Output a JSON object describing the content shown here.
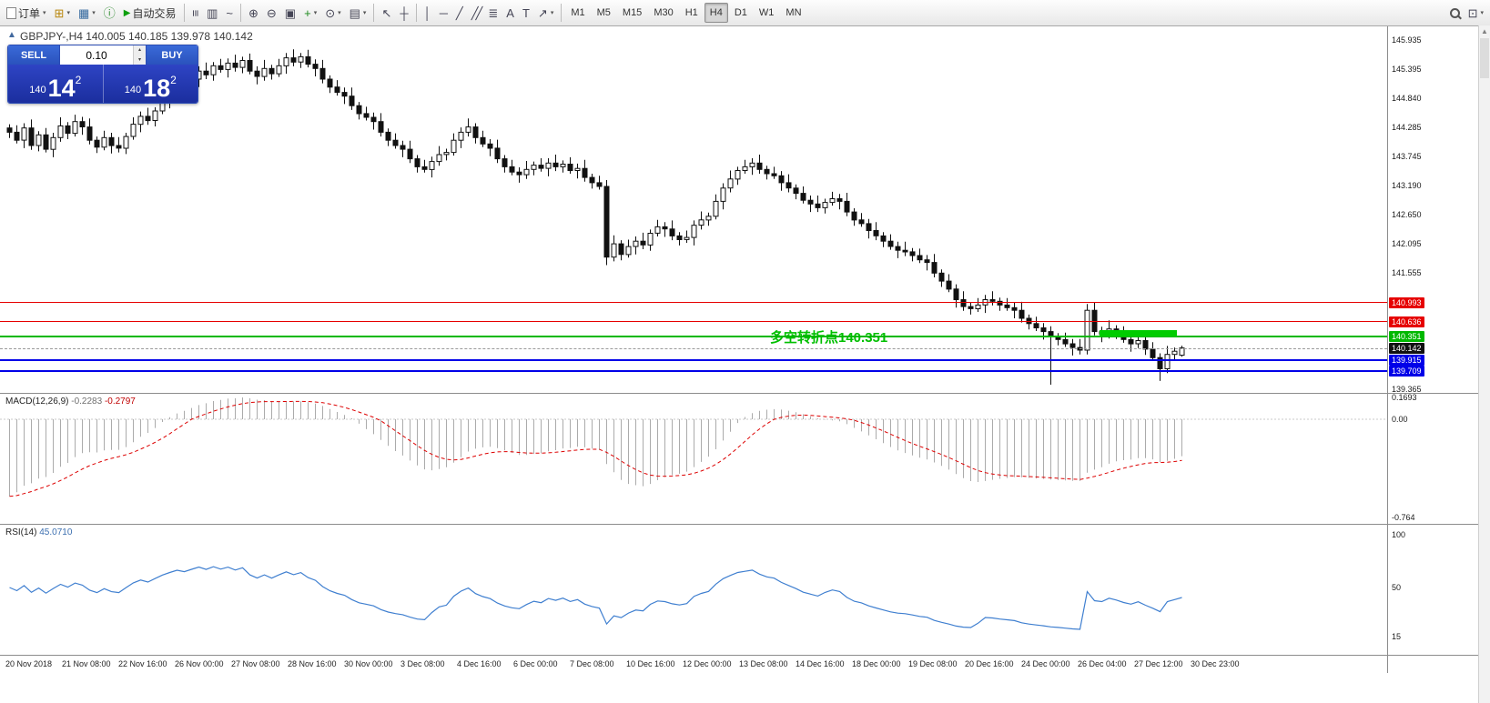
{
  "toolbar": {
    "items": [
      {
        "t": "btn",
        "name": "new-order-button",
        "label": "订单",
        "icon": "doc",
        "caret": true
      },
      {
        "t": "icon",
        "name": "new-chart-icon",
        "g": "⊞",
        "c": "#b8860b",
        "caret": true
      },
      {
        "t": "icon",
        "name": "profiles-icon",
        "g": "▦",
        "c": "#33689e",
        "caret": true
      },
      {
        "t": "icon",
        "name": "data-window-icon",
        "g": "ⓘ",
        "c": "#2e8b2e"
      },
      {
        "t": "btn",
        "name": "autotrading-button",
        "label": "自动交易",
        "icon": "play"
      },
      {
        "t": "sep"
      },
      {
        "t": "icon",
        "name": "bar-chart-icon",
        "g": "≡",
        "rot": true
      },
      {
        "t": "icon",
        "name": "candlestick-chart-icon",
        "g": "▥"
      },
      {
        "t": "icon",
        "name": "line-chart-icon",
        "g": "~"
      },
      {
        "t": "sep"
      },
      {
        "t": "icon",
        "name": "zoom-in-icon",
        "g": "⊕"
      },
      {
        "t": "icon",
        "name": "zoom-out-icon",
        "g": "⊖"
      },
      {
        "t": "icon",
        "name": "tile-windows-icon",
        "g": "▣"
      },
      {
        "t": "icon",
        "name": "indicators-icon",
        "g": "+",
        "c": "#1e8a1e",
        "caret": true
      },
      {
        "t": "icon",
        "name": "periods-icon",
        "g": "⊙",
        "caret": true
      },
      {
        "t": "icon",
        "name": "templates-icon",
        "g": "▤",
        "caret": true
      },
      {
        "t": "sep"
      },
      {
        "t": "icon",
        "name": "cursor-icon",
        "g": "↖"
      },
      {
        "t": "icon",
        "name": "crosshair-icon",
        "g": "┼"
      },
      {
        "t": "sep"
      },
      {
        "t": "icon",
        "name": "vertical-line-icon",
        "g": "│"
      },
      {
        "t": "icon",
        "name": "horizontal-line-icon",
        "g": "─"
      },
      {
        "t": "icon",
        "name": "trendline-icon",
        "g": "╱"
      },
      {
        "t": "icon",
        "name": "equidistant-channel-icon",
        "g": "╱╱"
      },
      {
        "t": "icon",
        "name": "fibonacci-icon",
        "g": "≣"
      },
      {
        "t": "icon",
        "name": "text-icon",
        "g": "A"
      },
      {
        "t": "icon",
        "name": "text-label-icon",
        "g": "T"
      },
      {
        "t": "icon",
        "name": "arrows-icon",
        "g": "↗",
        "caret": true
      },
      {
        "t": "sep"
      },
      {
        "t": "timeframes"
      },
      {
        "t": "spacer"
      },
      {
        "t": "search",
        "name": "search-icon"
      },
      {
        "t": "icon",
        "name": "symbol-search-icon",
        "g": "⊡",
        "caret": true
      }
    ],
    "timeframes": [
      "M1",
      "M5",
      "M15",
      "M30",
      "H1",
      "H4",
      "D1",
      "W1",
      "MN"
    ],
    "active_timeframe": "H4"
  },
  "chart": {
    "header": "GBPJPY-,H4  140.005 140.185 139.978 140.142",
    "one_click": {
      "sell_label": "SELL",
      "buy_label": "BUY",
      "lot": "0.10",
      "sell_price": {
        "prefix": "140",
        "big": "14",
        "sup": "2"
      },
      "buy_price": {
        "prefix": "140",
        "big": "18",
        "sup": "2"
      }
    },
    "annotation": "多空转折点140.351",
    "annotation_color": "#00bf00",
    "levels": [
      {
        "name": "resistance-line-upper",
        "price": 140.993,
        "label": "140.993",
        "color": "#e60000",
        "thickness": 1
      },
      {
        "name": "resistance-line-lower",
        "price": 140.636,
        "label": "140.636",
        "color": "#e60000",
        "thickness": 1
      },
      {
        "name": "pivot-line",
        "price": 140.351,
        "label": "140.351",
        "color": "#00b800",
        "thickness": 2
      },
      {
        "name": "current-price-line",
        "price": 140.142,
        "label": "140.142",
        "color": "#111111",
        "thickness": 1,
        "dashed": true
      },
      {
        "name": "support-line-upper",
        "price": 139.915,
        "label": "139.915",
        "color": "#0000e8",
        "thickness": 2
      },
      {
        "name": "support-line-lower",
        "price": 139.709,
        "label": "139.709",
        "color": "#0000e8",
        "thickness": 2
      }
    ],
    "axis_labels": [
      "145.935",
      "145.395",
      "144.840",
      "144.285",
      "143.745",
      "143.190",
      "142.650",
      "142.095",
      "141.555",
      "139.365"
    ],
    "highlight_box": {
      "name": "pivot-highlight-box",
      "color": "#00cc00",
      "price_top": 140.47,
      "price_bottom": 140.36,
      "x_start_index": 150,
      "x_end_index": 160
    }
  },
  "macd": {
    "label": "MACD(12,26,9)",
    "value_main": "-0.2283",
    "value_signal": "-0.2797",
    "axis": [
      "0.1693",
      "0.00",
      "-0.764"
    ]
  },
  "rsi": {
    "label": "RSI(14)",
    "value": "45.0710",
    "axis": [
      "100",
      "50",
      "15"
    ]
  },
  "chart_data": {
    "type": "candlestick",
    "symbol": "GBPJPY-",
    "timeframe": "H4",
    "last_ohlc": {
      "open": 140.005,
      "high": 140.185,
      "low": 139.978,
      "close": 140.142
    },
    "price_axis_range": [
      139.365,
      145.935
    ],
    "closes": [
      144.2,
      144.05,
      144.28,
      143.95,
      144.15,
      143.88,
      144.1,
      144.32,
      144.18,
      144.4,
      144.3,
      144.05,
      143.92,
      144.1,
      143.95,
      143.9,
      144.12,
      144.35,
      144.5,
      144.42,
      144.6,
      144.8,
      144.95,
      145.1,
      145.05,
      145.2,
      145.35,
      145.28,
      145.45,
      145.38,
      145.5,
      145.42,
      145.55,
      145.35,
      145.25,
      145.4,
      145.3,
      145.45,
      145.6,
      145.52,
      145.62,
      145.48,
      145.4,
      145.2,
      145.05,
      144.95,
      144.88,
      144.7,
      144.55,
      144.48,
      144.4,
      144.2,
      144.05,
      143.95,
      143.88,
      143.7,
      143.55,
      143.5,
      143.65,
      143.78,
      143.82,
      144.05,
      144.2,
      144.3,
      144.1,
      143.98,
      143.9,
      143.7,
      143.55,
      143.45,
      143.4,
      143.5,
      143.58,
      143.52,
      143.62,
      143.55,
      143.6,
      143.48,
      143.52,
      143.35,
      143.25,
      143.18,
      141.85,
      142.1,
      141.9,
      142.05,
      142.15,
      142.08,
      142.3,
      142.42,
      142.38,
      142.25,
      142.18,
      142.22,
      142.45,
      142.55,
      142.62,
      142.9,
      143.15,
      143.32,
      143.48,
      143.55,
      143.62,
      143.5,
      143.42,
      143.38,
      143.25,
      143.15,
      143.05,
      142.92,
      142.85,
      142.78,
      142.88,
      142.95,
      142.9,
      142.7,
      142.55,
      142.48,
      142.35,
      142.25,
      142.15,
      142.05,
      141.98,
      141.95,
      141.88,
      141.8,
      141.75,
      141.55,
      141.4,
      141.25,
      141.05,
      140.92,
      140.88,
      140.95,
      141.05,
      141.02,
      140.95,
      140.9,
      140.85,
      140.7,
      140.6,
      140.52,
      140.45,
      140.35,
      140.3,
      140.22,
      140.15,
      140.1,
      140.85,
      140.45,
      140.4,
      140.5,
      140.42,
      140.3,
      140.22,
      140.28,
      140.12,
      139.96,
      139.75,
      140.02,
      140.08,
      140.142
    ],
    "overrides": [
      {
        "i": 82,
        "o": 143.18,
        "h": 143.3,
        "l": 141.7,
        "c": 141.85
      },
      {
        "i": 143,
        "o": 140.45,
        "h": 140.55,
        "l": 139.45,
        "c": 140.35
      },
      {
        "i": 148,
        "o": 140.1,
        "h": 140.97,
        "l": 140.02,
        "c": 140.85
      },
      {
        "i": 149,
        "o": 140.85,
        "h": 140.99,
        "l": 140.38,
        "c": 140.45
      },
      {
        "i": 158,
        "o": 139.96,
        "h": 140.04,
        "l": 139.52,
        "c": 139.75
      },
      {
        "i": 161,
        "o": 140.005,
        "h": 140.185,
        "l": 139.978,
        "c": 140.142
      }
    ],
    "indicators": [
      {
        "name": "MACD",
        "params": [
          12,
          26,
          9
        ],
        "display_values": [
          -0.2283,
          -0.2797
        ],
        "axis_range": [
          -0.764,
          0.1693
        ]
      },
      {
        "name": "RSI",
        "params": [
          14
        ],
        "display_value": 45.071
      }
    ],
    "time_labels": [
      "20 Nov 2018",
      "21 Nov 08:00",
      "22 Nov 16:00",
      "26 Nov 00:00",
      "27 Nov 08:00",
      "28 Nov 16:00",
      "30 Nov 00:00",
      "3 Dec 08:00",
      "4 Dec 16:00",
      "6 Dec 00:00",
      "7 Dec 08:00",
      "10 Dec 16:00",
      "12 Dec 00:00",
      "13 Dec 08:00",
      "14 Dec 16:00",
      "18 Dec 00:00",
      "19 Dec 08:00",
      "20 Dec 16:00",
      "24 Dec 00:00",
      "26 Dec 04:00",
      "27 Dec 12:00",
      "30 Dec 23:00"
    ]
  }
}
